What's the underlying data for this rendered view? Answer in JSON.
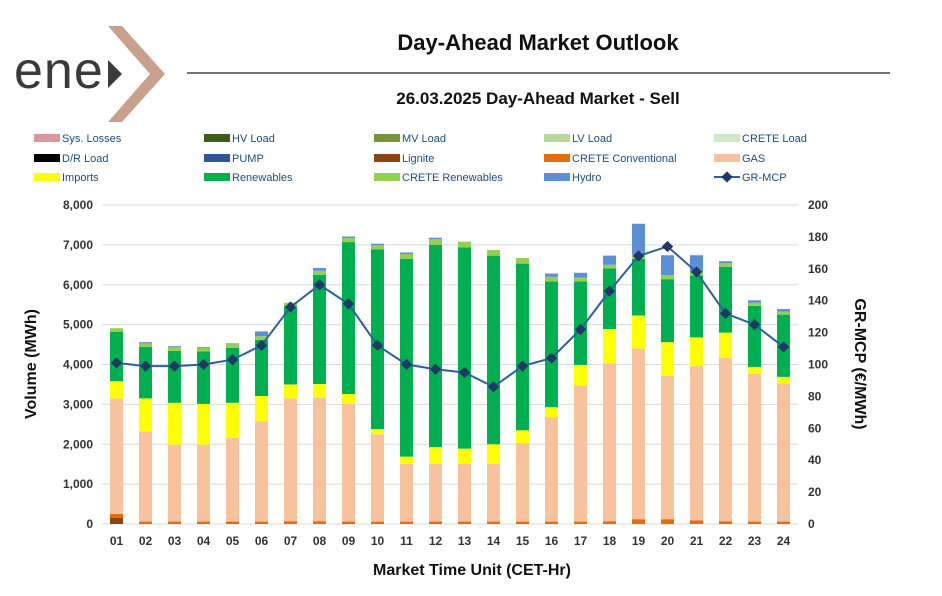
{
  "logo": {
    "text": "ene",
    "brand_color": "#c9a08c"
  },
  "header": {
    "title": "Day-Ahead Market Outlook",
    "subtitle": "26.03.2025  Day-Ahead Market - Sell"
  },
  "chart_data": {
    "type": "bar",
    "stacked": true,
    "xlabel": "Market Time Unit (CET-Hr)",
    "ylabel": "Volume (MWh)",
    "y2label": "GR-MCP (€/MWh)",
    "ylim": [
      0,
      8000
    ],
    "y2lim": [
      0,
      200
    ],
    "yticks": [
      "0",
      "1,000",
      "2,000",
      "3,000",
      "4,000",
      "5,000",
      "6,000",
      "7,000",
      "8,000"
    ],
    "y2ticks": [
      "0",
      "20",
      "40",
      "60",
      "80",
      "100",
      "120",
      "140",
      "160",
      "180",
      "200"
    ],
    "categories": [
      "01",
      "02",
      "03",
      "04",
      "05",
      "06",
      "07",
      "08",
      "09",
      "10",
      "11",
      "12",
      "13",
      "14",
      "15",
      "16",
      "17",
      "18",
      "19",
      "20",
      "21",
      "22",
      "23",
      "24"
    ],
    "legend": [
      {
        "name": "Sys. Losses",
        "color": "#d9999a",
        "kind": "bar"
      },
      {
        "name": "HV Load",
        "color": "#3d5c1e",
        "kind": "bar"
      },
      {
        "name": "MV Load",
        "color": "#77933c",
        "kind": "bar"
      },
      {
        "name": "LV Load",
        "color": "#b5d99c",
        "kind": "bar"
      },
      {
        "name": "CRETE Load",
        "color": "#cfe7c4",
        "kind": "bar"
      },
      {
        "name": "D/R Load",
        "color": "#000000",
        "kind": "bar"
      },
      {
        "name": "PUMP",
        "color": "#2f5597",
        "kind": "bar"
      },
      {
        "name": "Lignite",
        "color": "#8b4513",
        "kind": "bar"
      },
      {
        "name": "CRETE Conventional",
        "color": "#e46c0a",
        "kind": "bar"
      },
      {
        "name": "GAS",
        "color": "#f8c39c",
        "kind": "bar"
      },
      {
        "name": "Imports",
        "color": "#ffff00",
        "kind": "bar"
      },
      {
        "name": "Renewables",
        "color": "#00b050",
        "kind": "bar"
      },
      {
        "name": "CRETE Renewables",
        "color": "#92d050",
        "kind": "bar"
      },
      {
        "name": "Hydro",
        "color": "#5b8fd6",
        "kind": "bar"
      },
      {
        "name": "GR-MCP",
        "color": "#2e5f9e",
        "kind": "line"
      }
    ],
    "series": [
      {
        "name": "Lignite",
        "color": "#8b4513",
        "values": [
          150,
          0,
          0,
          0,
          0,
          0,
          0,
          0,
          0,
          0,
          0,
          0,
          0,
          0,
          0,
          0,
          0,
          0,
          0,
          0,
          0,
          0,
          0,
          0
        ]
      },
      {
        "name": "CRETE Conventional",
        "color": "#e46c0a",
        "values": [
          100,
          60,
          60,
          60,
          60,
          60,
          70,
          70,
          60,
          60,
          60,
          60,
          60,
          60,
          60,
          60,
          60,
          70,
          120,
          120,
          90,
          70,
          60,
          60
        ]
      },
      {
        "name": "GAS",
        "color": "#f8c39c",
        "values": [
          2900,
          2260,
          1930,
          1930,
          2100,
          2510,
          3080,
          3090,
          2950,
          2190,
          1450,
          1450,
          1450,
          1450,
          1970,
          2620,
          3410,
          3960,
          4280,
          3590,
          3870,
          4100,
          3710,
          3460
        ]
      },
      {
        "name": "Imports",
        "color": "#ffff00",
        "values": [
          430,
          830,
          1050,
          1020,
          880,
          640,
          350,
          350,
          250,
          130,
          180,
          420,
          380,
          490,
          320,
          250,
          520,
          860,
          830,
          850,
          720,
          630,
          170,
          170
        ]
      },
      {
        "name": "Renewables",
        "color": "#00b050",
        "values": [
          1240,
          1290,
          1300,
          1320,
          1380,
          1410,
          1960,
          2740,
          3810,
          4510,
          4960,
          5070,
          5050,
          4730,
          4180,
          3150,
          2090,
          1520,
          1420,
          1580,
          1550,
          1650,
          1530,
          1560
        ]
      },
      {
        "name": "CRETE Renewables",
        "color": "#92d050",
        "values": [
          90,
          90,
          90,
          90,
          90,
          90,
          90,
          100,
          100,
          100,
          120,
          140,
          140,
          140,
          140,
          120,
          100,
          90,
          100,
          100,
          90,
          90,
          80,
          80
        ]
      },
      {
        "name": "Hydro",
        "color": "#5b8fd6",
        "values": [
          0,
          30,
          30,
          20,
          20,
          120,
          0,
          70,
          40,
          40,
          40,
          40,
          0,
          0,
          0,
          80,
          120,
          230,
          780,
          500,
          420,
          50,
          60,
          60
        ]
      }
    ],
    "line": {
      "name": "GR-MCP",
      "color": "#2e5f9e",
      "axis": "right",
      "values": [
        101,
        99,
        99,
        100,
        103,
        112,
        136,
        150,
        138,
        112,
        100,
        97,
        95,
        86,
        99,
        104,
        122,
        146,
        168,
        174,
        158,
        132,
        125,
        111
      ]
    }
  }
}
